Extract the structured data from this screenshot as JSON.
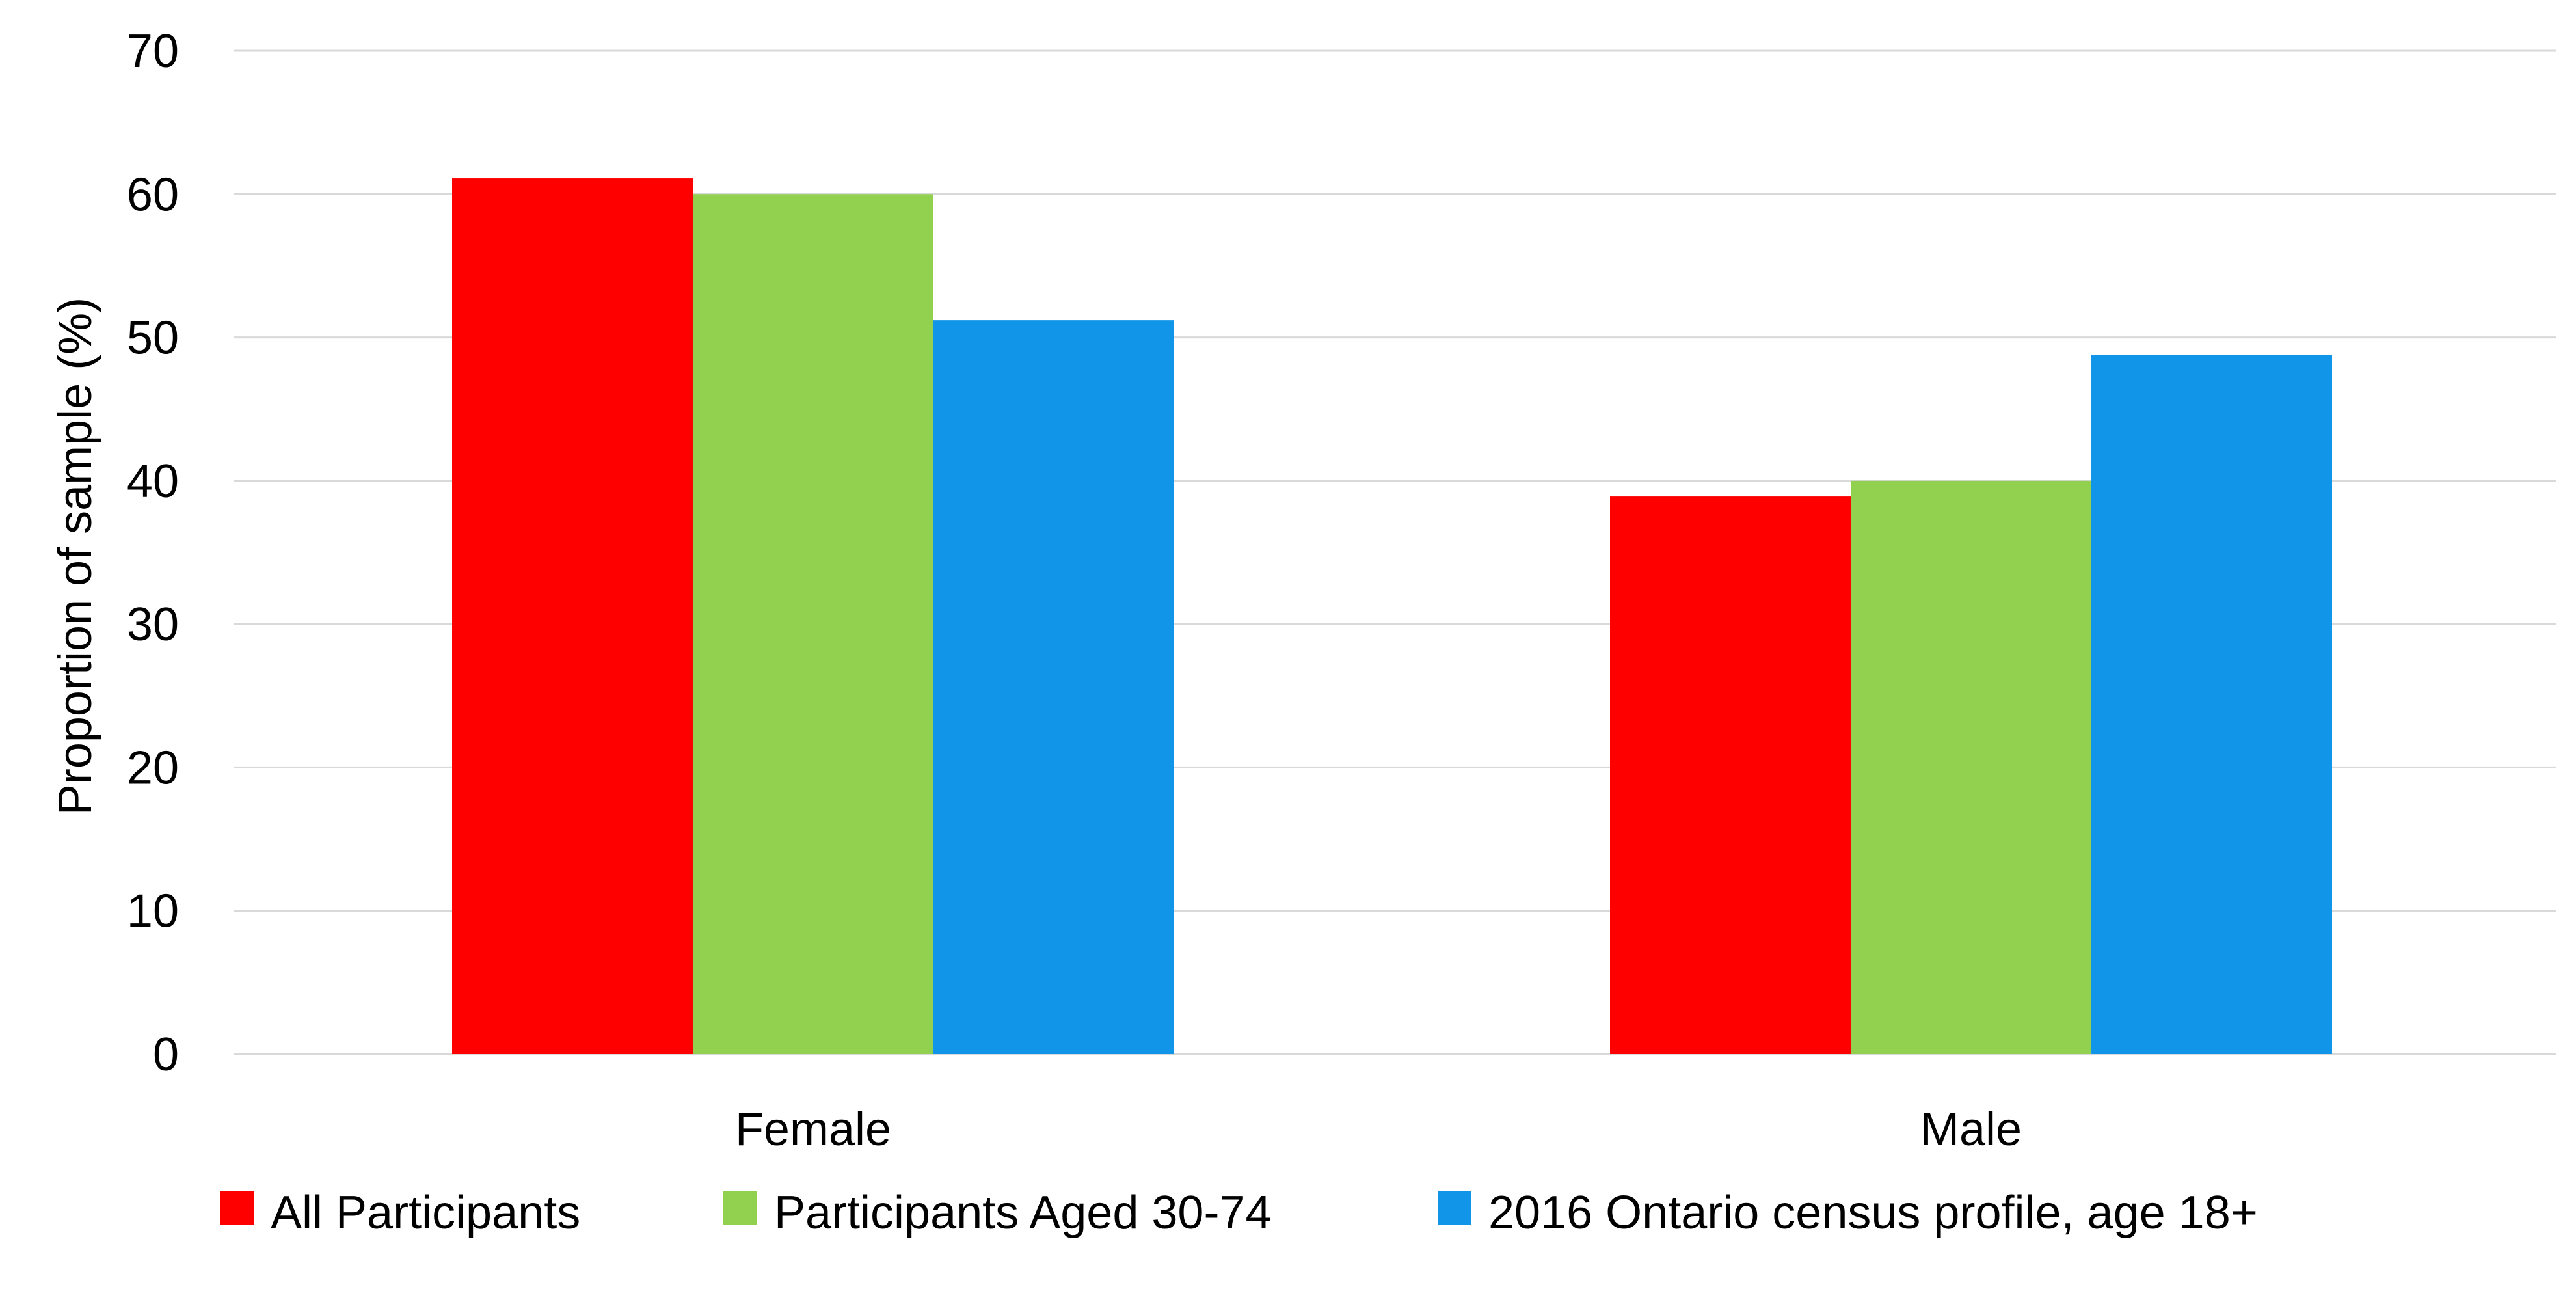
{
  "chart_data": {
    "type": "bar",
    "categories": [
      "Female",
      "Male"
    ],
    "series": [
      {
        "name": "All Participants",
        "color": "#ff0000",
        "values": [
          61.1,
          38.9
        ]
      },
      {
        "name": "Participants Aged 30-74",
        "color": "#92d050",
        "values": [
          60.0,
          40.0
        ]
      },
      {
        "name": "2016 Ontario census profile, age 18+",
        "color": "#1195e8",
        "values": [
          51.2,
          48.8
        ]
      }
    ],
    "title": "",
    "xlabel": "",
    "ylabel": "Proportion of sample (%)",
    "ylim": [
      0,
      70
    ],
    "yticks": [
      0,
      10,
      20,
      30,
      40,
      50,
      60,
      70
    ],
    "grid": true,
    "legend_position": "bottom"
  }
}
